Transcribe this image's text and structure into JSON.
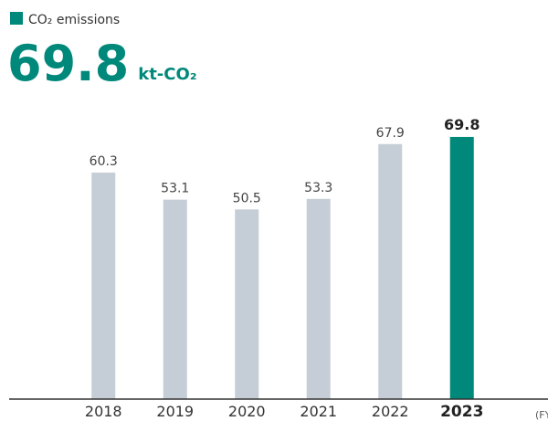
{
  "chart_data": {
    "type": "bar",
    "legend": "CO₂ emissions",
    "unit": "kt-CO₂",
    "x_label": "(FY)",
    "categories": [
      "2018",
      "2019",
      "2020",
      "2021",
      "2022",
      "2023"
    ],
    "values": [
      60.3,
      53.1,
      50.5,
      53.3,
      67.9,
      69.8
    ],
    "color": "#c5ced6",
    "highlight_color": "#00887a",
    "highlight_category": "2023",
    "ylim": [
      0,
      80
    ]
  }
}
